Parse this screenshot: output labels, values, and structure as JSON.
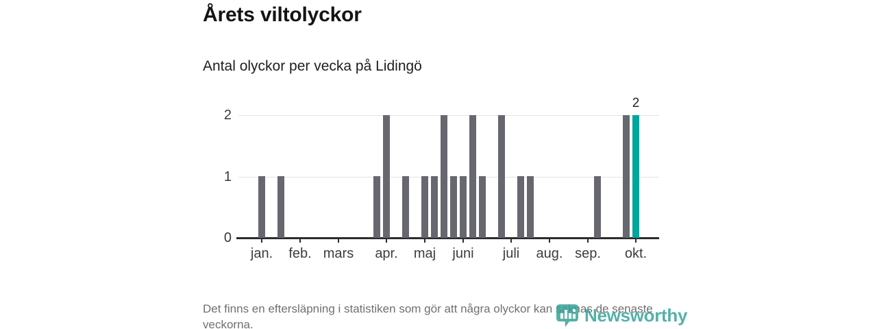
{
  "header": {
    "title": "Årets viltolyckor",
    "subtitle": "Antal olyckor per vecka på Lidingö"
  },
  "chart_data": {
    "type": "bar",
    "title": "Årets viltolyckor",
    "subtitle": "Antal olyckor per vecka på Lidingö",
    "x_unit": "week_of_year",
    "weeks": [
      1,
      2,
      3,
      4,
      5,
      6,
      7,
      8,
      9,
      10,
      11,
      12,
      13,
      14,
      15,
      16,
      17,
      18,
      19,
      20,
      21,
      22,
      23,
      24,
      25,
      26,
      27,
      28,
      29,
      30,
      31,
      32,
      33,
      34,
      35,
      36,
      37,
      38,
      39,
      40
    ],
    "values": [
      1,
      0,
      1,
      0,
      0,
      0,
      0,
      0,
      0,
      0,
      0,
      0,
      1,
      2,
      0,
      1,
      0,
      1,
      1,
      2,
      1,
      1,
      2,
      1,
      0,
      2,
      0,
      1,
      1,
      0,
      0,
      0,
      0,
      0,
      0,
      1,
      0,
      0,
      2,
      2
    ],
    "ylabel": "",
    "xlabel": "",
    "ylim": [
      0,
      2
    ],
    "yticks": [
      "0",
      "1",
      "2"
    ],
    "grid": "horizontal",
    "legend": "none",
    "month_ticks": [
      {
        "week": 1,
        "label": "jan."
      },
      {
        "week": 5,
        "label": "feb."
      },
      {
        "week": 9,
        "label": "mars"
      },
      {
        "week": 14,
        "label": "apr."
      },
      {
        "week": 18,
        "label": "maj"
      },
      {
        "week": 22,
        "label": "juni"
      },
      {
        "week": 27,
        "label": "juli"
      },
      {
        "week": 31,
        "label": "aug."
      },
      {
        "week": 35,
        "label": "sep."
      },
      {
        "week": 40,
        "label": "okt."
      }
    ],
    "bar_color": "#67676f",
    "highlight_week": 40,
    "highlight_color": "#00a69b",
    "highlight_value_label": "2",
    "gridline_color": "#e4e4e4",
    "axis_color": "#2c2c2c"
  },
  "footnote": {
    "text": "Det finns en eftersläpning i statistiken som gör att några olyckor kan saknas de senaste veckorna."
  },
  "logo": {
    "text": "Newsworthy",
    "icon": "newsworthy-marker-chart-icon",
    "color": "#2fa096"
  }
}
